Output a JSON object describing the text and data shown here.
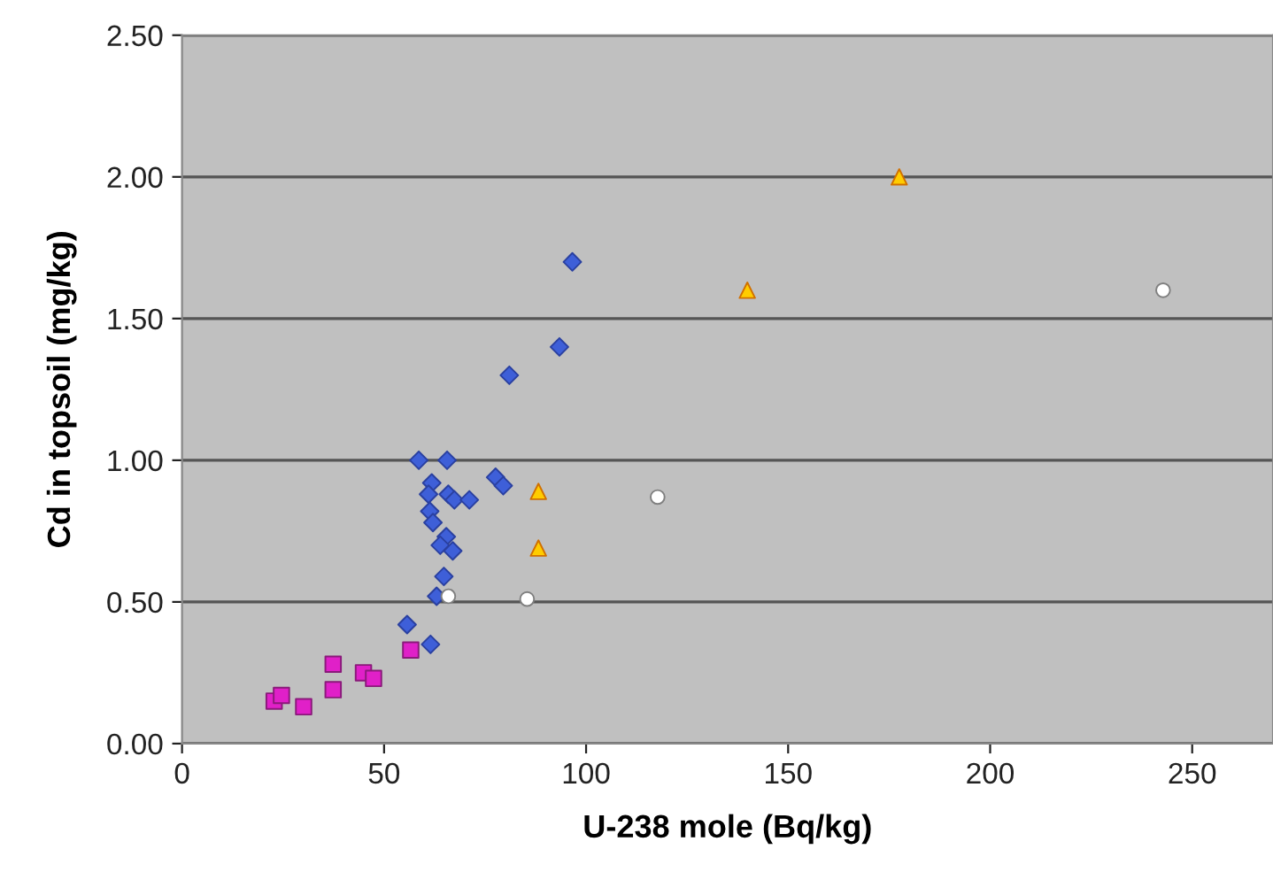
{
  "chart_data": {
    "type": "scatter",
    "xlabel": "U-238 mole (Bq/kg)",
    "ylabel": "Cd in topsoil (mg/kg)",
    "xlim": [
      0,
      270
    ],
    "xticks": [
      0,
      50,
      100,
      150,
      200,
      250
    ],
    "ylim": [
      0,
      2.5
    ],
    "yticks": [
      {
        "value": 0,
        "label": "0.00"
      },
      {
        "value": 0.5,
        "label": "0.50"
      },
      {
        "value": 1,
        "label": "1.00"
      },
      {
        "value": 1.5,
        "label": "1.50"
      },
      {
        "value": 2,
        "label": "2.00"
      },
      {
        "value": 2.5,
        "label": "2.50"
      }
    ],
    "grid": "y",
    "legend": false,
    "series": [
      {
        "color": "#3e5fd8",
        "marker": "diamond",
        "x": [
          58.6,
          65.6,
          61.8,
          61.0,
          65.9,
          67.4,
          71.1,
          77.6,
          79.5,
          61.3,
          62.1,
          65.4,
          63.9,
          67.0,
          64.8,
          63.0,
          55.7,
          61.5,
          96.6,
          93.4,
          81.0
        ],
        "values": [
          1.0,
          1.0,
          0.92,
          0.88,
          0.88,
          0.86,
          0.86,
          0.94,
          0.91,
          0.82,
          0.78,
          0.73,
          0.7,
          0.68,
          0.59,
          0.52,
          0.42,
          0.35,
          1.7,
          1.4,
          1.3
        ]
      },
      {
        "color": "#e020c8",
        "marker": "square",
        "x": [
          22.8,
          24.6,
          30.1,
          37.4,
          37.4,
          44.9,
          47.4,
          56.6
        ],
        "values": [
          0.15,
          0.17,
          0.13,
          0.28,
          0.19,
          0.25,
          0.23,
          0.33
        ]
      },
      {
        "color": "#ffffff",
        "marker": "circle",
        "x": [
          65.9,
          85.4,
          117.7,
          242.8
        ],
        "values": [
          0.52,
          0.51,
          0.87,
          1.6
        ]
      },
      {
        "color": "#ffcc00",
        "marker": "triangle",
        "x": [
          88.2,
          88.2,
          139.9,
          177.5
        ],
        "values": [
          0.89,
          0.69,
          1.6,
          2.0
        ]
      }
    ]
  }
}
